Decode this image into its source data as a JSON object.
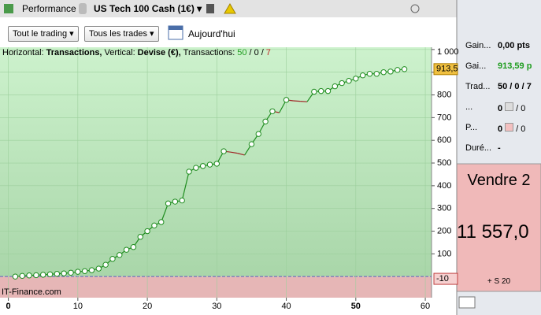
{
  "toolbar": {
    "tab": "Performance",
    "instrument": "US Tech 100 Cash (1€)"
  },
  "filters": {
    "trading": "Tout le trading",
    "trades": "Tous les trades",
    "date": "Aujourd'hui"
  },
  "chart_data": {
    "type": "line",
    "header": {
      "h_label": "Horizontal:",
      "h_value": "Transactions,",
      "v_label": "Vertical:",
      "v_value": "Devise (€),",
      "t_label": "Transactions:",
      "wins": 50,
      "flat": 0,
      "losses": 7,
      "separator": "/"
    },
    "x": [
      1,
      2,
      3,
      4,
      5,
      6,
      7,
      8,
      9,
      10,
      11,
      12,
      13,
      14,
      15,
      16,
      17,
      18,
      19,
      20,
      21,
      22,
      23,
      24,
      25,
      26,
      27,
      28,
      29,
      30,
      31,
      32,
      33,
      34,
      35,
      36,
      37,
      38,
      39,
      40,
      41,
      42,
      43,
      44,
      45,
      46,
      47,
      48,
      49,
      50,
      51,
      52,
      53,
      54,
      55,
      56,
      57
    ],
    "series": [
      {
        "color": "#1e8c1e",
        "loss_color": "#a02828",
        "values": [
          0,
          3,
          5,
          6,
          8,
          10,
          12,
          14,
          17,
          21,
          24,
          28,
          35,
          52,
          78,
          95,
          118,
          130,
          175,
          200,
          225,
          240,
          322,
          330,
          335,
          462,
          479,
          487,
          493,
          497,
          552,
          548,
          543,
          535,
          583,
          628,
          683,
          728,
          722,
          778,
          774,
          772,
          770,
          814,
          817,
          817,
          838,
          852,
          862,
          872,
          886,
          893,
          893,
          900,
          903,
          910,
          913.5
        ]
      }
    ],
    "xlim": [
      -1.2,
      60.9
    ],
    "ylim": [
      -93,
      1003
    ],
    "xticks": [
      0,
      10,
      20,
      30,
      40,
      50,
      60
    ],
    "yticks": [
      100,
      200,
      300,
      400,
      500,
      600,
      700,
      800,
      900,
      {
        "value": 1000,
        "label": "1 000"
      }
    ],
    "markers": [
      {
        "value": 913.5,
        "label": "913,5"
      },
      {
        "value": -10,
        "label": "-10"
      }
    ],
    "watermark": "IT-Finance.com"
  },
  "panel": {
    "rows": [
      {
        "label": "Gain...",
        "value": "0,00 pts"
      },
      {
        "label": "Gai...",
        "value": "913,59 p"
      },
      {
        "label": "Trad...",
        "value": "50 / 0 / 7"
      },
      {
        "label": "...",
        "value": 0,
        "value2": 0
      },
      {
        "label": "P...",
        "value": 0,
        "value2": 0
      },
      {
        "label": "Duré...",
        "value": "-"
      }
    ],
    "order": {
      "side": "Vendre 2",
      "price": "11 557,0",
      "detail": "+ S 20"
    }
  }
}
